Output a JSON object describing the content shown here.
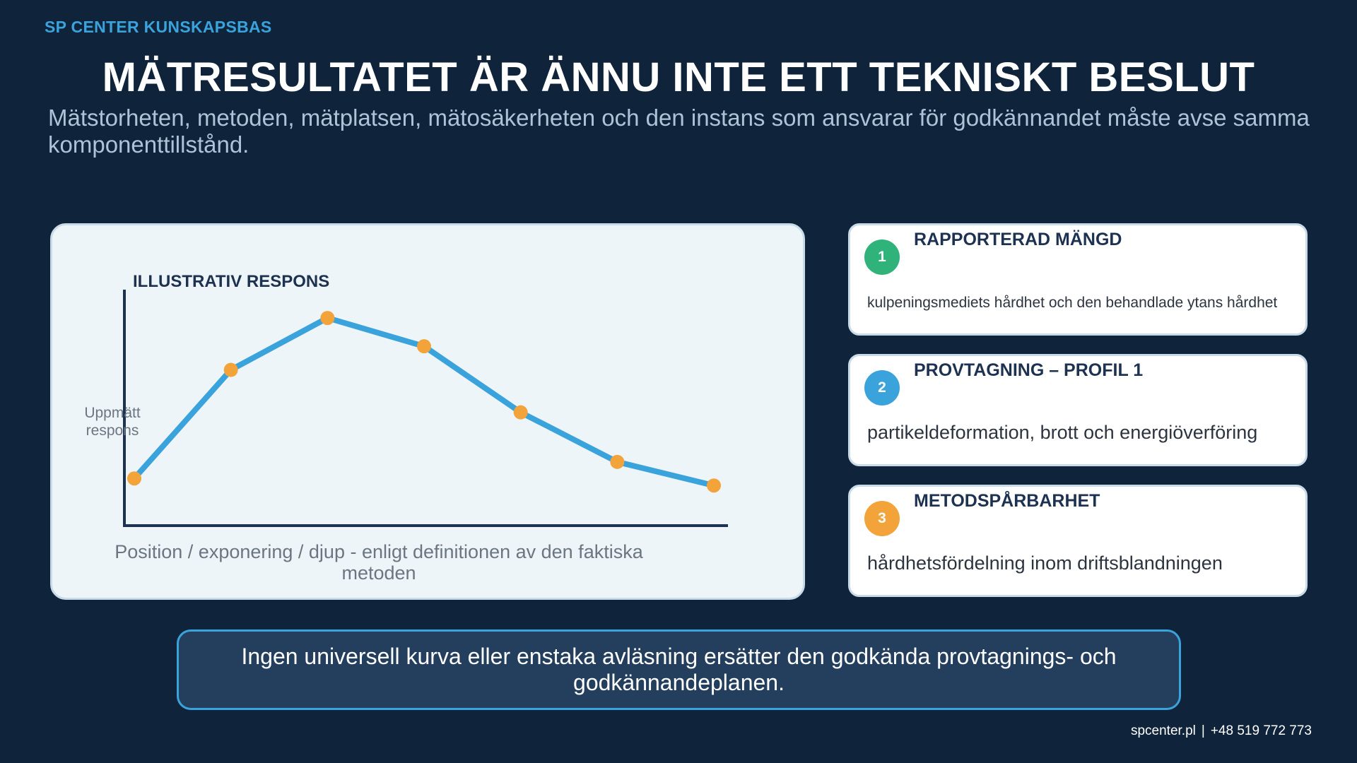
{
  "brand": "SP CENTER KUNSKAPSBAS",
  "title": "MÄTRESULTATET ÄR ÄNNU INTE ETT TEKNISKT BESLUT",
  "subtitle": "Mätstorheten, metoden, mätplatsen, mätosäkerheten och den instans som ansvarar för godkännandet måste avse samma komponenttillstånd.",
  "chart_data": {
    "type": "line",
    "title": "ILLUSTRATIV RESPONS",
    "xlabel": "Position / exponering / djup - enligt definitionen av den faktiska metoden",
    "ylabel": "Uppmätt respons",
    "x": [
      0,
      1,
      2,
      3,
      4,
      5,
      6
    ],
    "series": [
      {
        "values": [
          0.2,
          0.66,
          0.88,
          0.76,
          0.48,
          0.27,
          0.17
        ]
      }
    ],
    "xlim": [
      0,
      6
    ],
    "ylim": [
      0,
      1
    ],
    "grid": false,
    "ticks": false,
    "colors": {
      "line": "#3aa3dc",
      "points": "#f2a33a",
      "axis": "#1d3150"
    }
  },
  "cards": [
    {
      "number": "1",
      "title": "RAPPORTERAD MÄNGD",
      "description": "kulpeningsmediets hårdhet och den behandlade ytans hårdhet",
      "color": "#2fb37a"
    },
    {
      "number": "2",
      "title": "PROVTAGNING – PROFIL 1",
      "description": "partikeldeformation, brott och energiöverföring",
      "color": "#3aa3dc"
    },
    {
      "number": "3",
      "title": "METODSPÅRBARHET",
      "description": "hårdhetsfördelning inom driftsblandningen",
      "color": "#f2a33a"
    }
  ],
  "banner": "Ingen universell kurva eller enstaka avläsning ersätter den godkända provtagnings- och godkännandeplanen.",
  "footer": {
    "website": "spcenter.pl",
    "separator": "|",
    "phone": "+48 519 772 773"
  }
}
